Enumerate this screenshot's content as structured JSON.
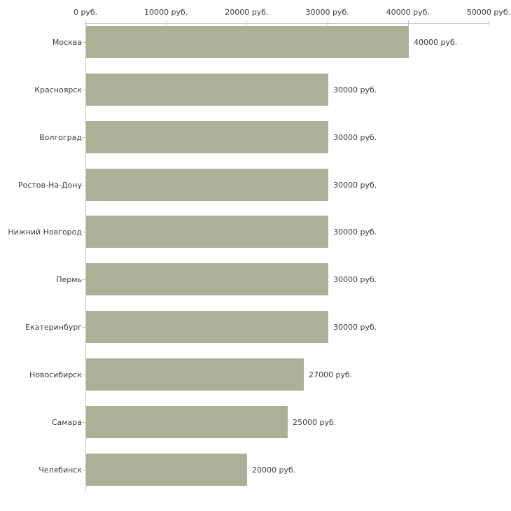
{
  "chart_data": {
    "type": "bar",
    "orientation": "horizontal",
    "title": "",
    "categories": [
      "Москва",
      "Красноярск",
      "Волгоград",
      "Ростов-На-Дону",
      "Нижний Новгород",
      "Пермь",
      "Екатеринбург",
      "Новосибирск",
      "Самара",
      "Челябинск"
    ],
    "values": [
      40000,
      30000,
      30000,
      30000,
      30000,
      30000,
      30000,
      27000,
      25000,
      20000
    ],
    "bar_labels": [
      "40000 руб.",
      "30000 руб.",
      "30000 руб.",
      "30000 руб.",
      "30000 руб.",
      "30000 руб.",
      "30000 руб.",
      "27000 руб.",
      "25000 руб.",
      "20000 руб."
    ],
    "x_axis": {
      "position": "top",
      "min": 0,
      "max": 50000,
      "ticks": [
        0,
        10000,
        20000,
        30000,
        40000,
        50000
      ],
      "tick_labels": [
        "0 руб.",
        "10000 руб.",
        "20000 руб.",
        "30000 руб.",
        "40000 руб.",
        "50000 руб."
      ]
    },
    "grid": false,
    "legend": "none",
    "colors": {
      "bar": "#abb196",
      "axis": "#c8c8c8",
      "tick": "#c6c6a0",
      "text": "#3c3c3c",
      "background": "#ffffff"
    }
  }
}
